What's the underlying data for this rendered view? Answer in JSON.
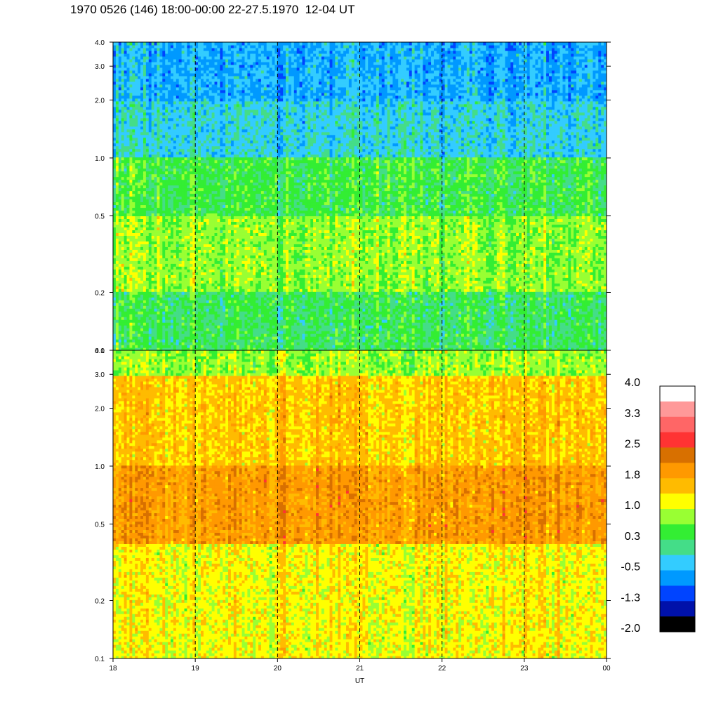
{
  "title": "1970 0526 (146) 18:00-00:00 22-27.5.1970  12-04 UT",
  "chart_data": [
    {
      "type": "heatmap",
      "panel": "upper",
      "x_ticks": [
        "18",
        "19",
        "20",
        "21",
        "22",
        "23",
        "00"
      ],
      "xlim": [
        18,
        24
      ],
      "y_scale": "log",
      "ylim": [
        0.1,
        4.0
      ],
      "y_ticks": [
        "0.1",
        "0.2",
        "0.5",
        "1.0",
        "2.0",
        "3.0",
        "4.0"
      ],
      "dashed_vertical_lines_at_ut": [
        19,
        20,
        21,
        22,
        23
      ],
      "dominant_level_by_y_band": [
        {
          "y": "2.0-4.0",
          "level": -0.5
        },
        {
          "y": "1.0-2.0",
          "level": -0.2
        },
        {
          "y": "0.5-1.0",
          "level": 0.4
        },
        {
          "y": "0.2-0.5",
          "level": 0.8
        },
        {
          "y": "0.1-0.2",
          "level": 0.3
        }
      ]
    },
    {
      "type": "heatmap",
      "panel": "lower",
      "x_ticks": [
        "18",
        "19",
        "20",
        "21",
        "22",
        "23",
        "00"
      ],
      "xlim": [
        18,
        24
      ],
      "xlabel": "UT",
      "y_scale": "log",
      "ylim": [
        0.1,
        4.0
      ],
      "y_ticks": [
        "0.1",
        "0.2",
        "0.5",
        "1.0",
        "2.0",
        "3.0",
        "4.0"
      ],
      "dashed_vertical_lines_at_ut": [
        19,
        20,
        21,
        22,
        23
      ],
      "dominant_level_by_y_band": [
        {
          "y": "3.0-4.0",
          "level": 0.8
        },
        {
          "y": "1.0-3.0",
          "level": 1.5
        },
        {
          "y": "0.4-1.0",
          "level": 1.9
        },
        {
          "y": "0.1-0.4",
          "level": 1.2
        }
      ]
    }
  ],
  "colorbar": {
    "labels": [
      "4.0",
      "3.3",
      "2.5",
      "1.8",
      "1.0",
      "0.3",
      "-0.5",
      "-1.3",
      "-2.0"
    ],
    "colors_top_to_bottom": [
      "#ffffff",
      "#ff9999",
      "#ff6666",
      "#ff3333",
      "#d87000",
      "#ff9900",
      "#ffbb00",
      "#ffff00",
      "#99ff33",
      "#33ee33",
      "#44dd88",
      "#33ccff",
      "#0099ff",
      "#0044ff",
      "#0011aa",
      "#000000"
    ]
  }
}
